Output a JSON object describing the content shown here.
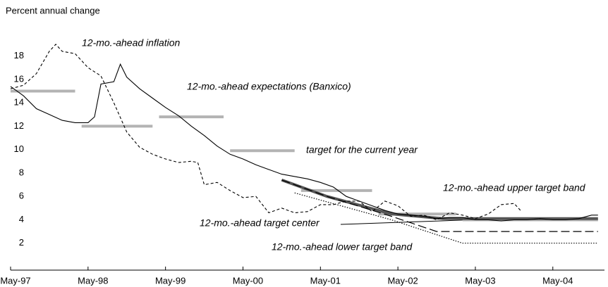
{
  "chart_data": {
    "type": "line",
    "title": "Percent annual change",
    "xlim": [
      "1997-05",
      "2005-01"
    ],
    "ylim": [
      -0.3,
      19.6
    ],
    "yticks": [
      2,
      4,
      6,
      8,
      10,
      12,
      14,
      16,
      18
    ],
    "xticks": [
      {
        "value": "1997-05",
        "label": "May-97"
      },
      {
        "value": "1998-05",
        "label": "May-98"
      },
      {
        "value": "1999-05",
        "label": "May-99"
      },
      {
        "value": "2000-05",
        "label": "May-00"
      },
      {
        "value": "2001-05",
        "label": "May-01"
      },
      {
        "value": "2002-05",
        "label": "May-02"
      },
      {
        "value": "2003-05",
        "label": "May-03"
      },
      {
        "value": "2004-05",
        "label": "May-04"
      }
    ],
    "series": [
      {
        "name": "12-mo.-ahead inflation",
        "color": "#000000",
        "style": "dashed",
        "x": [
          "1997-05",
          "1997-07",
          "1997-09",
          "1997-11",
          "1997-12",
          "1998-01",
          "1998-03",
          "1998-05",
          "1998-07",
          "1998-09",
          "1998-11",
          "1999-01",
          "1999-03",
          "1999-05",
          "1999-07",
          "1999-09",
          "1999-10",
          "1999-11",
          "2000-01",
          "2000-03",
          "2000-05",
          "2000-07",
          "2000-09",
          "2000-11",
          "2001-01",
          "2001-03",
          "2001-05",
          "2001-07",
          "2001-09",
          "2001-11",
          "2002-01",
          "2002-03",
          "2002-05",
          "2002-07",
          "2002-09",
          "2002-11",
          "2003-01",
          "2003-03",
          "2003-05",
          "2003-07",
          "2003-09",
          "2003-11",
          "2003-12"
        ],
        "values": [
          15.2,
          15.5,
          16.5,
          18.4,
          19.0,
          18.4,
          18.2,
          17.0,
          16.3,
          14.0,
          11.5,
          10.2,
          9.6,
          9.2,
          8.9,
          9.0,
          8.9,
          7.0,
          7.2,
          6.5,
          5.9,
          6.0,
          4.6,
          5.0,
          4.6,
          4.7,
          5.3,
          5.3,
          5.6,
          5.6,
          4.7,
          5.6,
          5.2,
          4.3,
          4.4,
          4.0,
          4.6,
          4.4,
          4.1,
          4.5,
          5.3,
          5.4,
          4.8
        ]
      },
      {
        "name": "12-mo.-ahead expectations (Banxico)",
        "color": "#000000",
        "style": "solid",
        "x": [
          "1997-05",
          "1997-07",
          "1997-09",
          "1997-11",
          "1998-01",
          "1998-03",
          "1998-05",
          "1998-06",
          "1998-07",
          "1998-09",
          "1998-10",
          "1998-11",
          "1999-01",
          "1999-03",
          "1999-05",
          "1999-07",
          "1999-09",
          "1999-11",
          "2000-01",
          "2000-03",
          "2000-05",
          "2000-07",
          "2000-09",
          "2000-11",
          "2001-01",
          "2001-03",
          "2001-05",
          "2001-07",
          "2001-09",
          "2001-11",
          "2002-01",
          "2002-03",
          "2002-05",
          "2002-07",
          "2002-09",
          "2002-11",
          "2003-01",
          "2003-03",
          "2003-05",
          "2003-07",
          "2003-09",
          "2003-11",
          "2004-01",
          "2004-03",
          "2004-05",
          "2004-07",
          "2004-09",
          "2004-11",
          "2004-12"
        ],
        "values": [
          15.4,
          14.6,
          13.5,
          13.0,
          12.5,
          12.3,
          12.3,
          12.8,
          15.6,
          15.8,
          17.3,
          16.2,
          15.2,
          14.4,
          13.6,
          12.9,
          12.0,
          11.2,
          10.3,
          9.6,
          9.2,
          8.7,
          8.3,
          7.9,
          7.7,
          7.5,
          7.2,
          6.8,
          6.0,
          5.6,
          5.2,
          4.8,
          4.5,
          4.4,
          4.3,
          4.1,
          4.2,
          4.2,
          4.0,
          4.0,
          3.9,
          4.0,
          4.0,
          4.1,
          4.0,
          4.0,
          4.1,
          4.4,
          4.4
        ]
      },
      {
        "name": "target for the current year",
        "color": "#b3b3b3",
        "style": "thick",
        "x": [
          "1997-05",
          "1998-03",
          "1998-04",
          "1998-04",
          "1999-03",
          "1999-04",
          "1999-04",
          "2000-02",
          "2000-03",
          "2000-03",
          "2001-01",
          "2001-02",
          "2001-02",
          "2002-01",
          "2002-02",
          "2002-02",
          "2003-02",
          "2003-03",
          "2003-03",
          "2004-12"
        ],
        "values": [
          15,
          15,
          null,
          12,
          12,
          null,
          12.8,
          12.8,
          null,
          9.9,
          9.9,
          null,
          6.5,
          6.5,
          null,
          4.5,
          4.5,
          null,
          4,
          4
        ]
      },
      {
        "name": "12-mo.-ahead upper target band",
        "color": "#555555",
        "style": "thick",
        "x": [
          "2000-11",
          "2001-06",
          "2002-04",
          "2002-12",
          "2004-12"
        ],
        "values": [
          7.4,
          6.0,
          4.5,
          4.1,
          4.1
        ]
      },
      {
        "name": "12-mo.-ahead target center",
        "color": "#000000",
        "style": "long-dashed",
        "x": [
          "2000-11",
          "2001-06",
          "2002-04",
          "2002-11",
          "2004-12"
        ],
        "values": [
          7.4,
          6.0,
          4.3,
          3.0,
          3.0
        ]
      },
      {
        "name": "12-mo.-ahead lower target band",
        "color": "#000000",
        "style": "dotted",
        "x": [
          "2001-01",
          "2002-04",
          "2003-03",
          "2004-12"
        ],
        "values": [
          6.3,
          4.0,
          2.0,
          2.0
        ]
      }
    ]
  }
}
